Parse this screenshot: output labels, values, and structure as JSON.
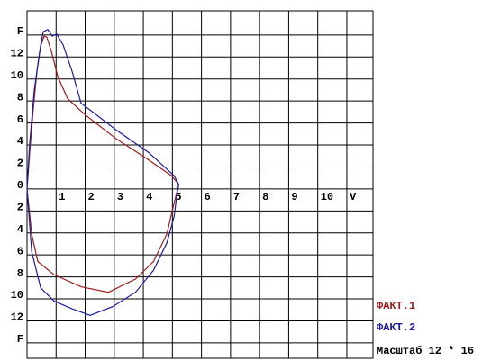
{
  "chart_data": {
    "type": "line",
    "xlim": [
      0,
      11.9
    ],
    "ylim": [
      -15.4,
      16.2
    ],
    "xticks": [
      1,
      2,
      3,
      4,
      5,
      6,
      7,
      8,
      9,
      10,
      {
        "value": 11,
        "label": "V"
      }
    ],
    "yticks": [
      {
        "value": 14,
        "label": "F"
      },
      12,
      10,
      8,
      6,
      4,
      2,
      0,
      {
        "value": -2,
        "label": "2"
      },
      {
        "value": -4,
        "label": "4"
      },
      {
        "value": -6,
        "label": "6"
      },
      {
        "value": -8,
        "label": "8"
      },
      {
        "value": -10,
        "label": "10"
      },
      {
        "value": -12,
        "label": "12"
      },
      {
        "value": -14,
        "label": "F"
      }
    ],
    "grid": true,
    "series": [
      {
        "name": "ФАКТ.1",
        "color": "#9c1c1c",
        "x": [
          0,
          0.09,
          0.22,
          0.34,
          0.47,
          0.59,
          0.68,
          0.84,
          1.06,
          1.4,
          2.02,
          3.1,
          4.04,
          4.97,
          5.22,
          5.16,
          5.03,
          4.81,
          4.35,
          3.73,
          2.8,
          1.86,
          0.93,
          0.37,
          0.16,
          0
        ],
        "values": [
          0,
          3.3,
          7.4,
          10.7,
          13.0,
          13.9,
          13.8,
          12.5,
          10.2,
          8.2,
          6.7,
          4.5,
          2.9,
          1.2,
          0.4,
          -0.2,
          -1.6,
          -4.1,
          -6.6,
          -8.2,
          -9.4,
          -8.9,
          -7.8,
          -6.6,
          -4.1,
          0
        ]
      },
      {
        "name": "ФАКТ.2",
        "color": "#1c1c9c",
        "x": [
          0,
          0.09,
          0.25,
          0.47,
          0.56,
          0.71,
          0.87,
          1.02,
          1.24,
          1.55,
          1.86,
          3.1,
          4.19,
          5.06,
          5.22,
          5.16,
          5.06,
          4.81,
          4.35,
          3.73,
          2.95,
          2.17,
          1.55,
          0.93,
          0.47,
          0.16,
          0
        ],
        "values": [
          0,
          4.1,
          9.0,
          13.1,
          14.3,
          14.5,
          13.9,
          14.1,
          13.1,
          10.7,
          7.8,
          5.3,
          3.3,
          1.2,
          0.4,
          -0.4,
          -2.5,
          -4.9,
          -7.4,
          -9.4,
          -10.7,
          -11.5,
          -10.9,
          -10.2,
          -9.0,
          -5.7,
          0
        ]
      }
    ],
    "note": "Масштаб 12 * 16"
  }
}
